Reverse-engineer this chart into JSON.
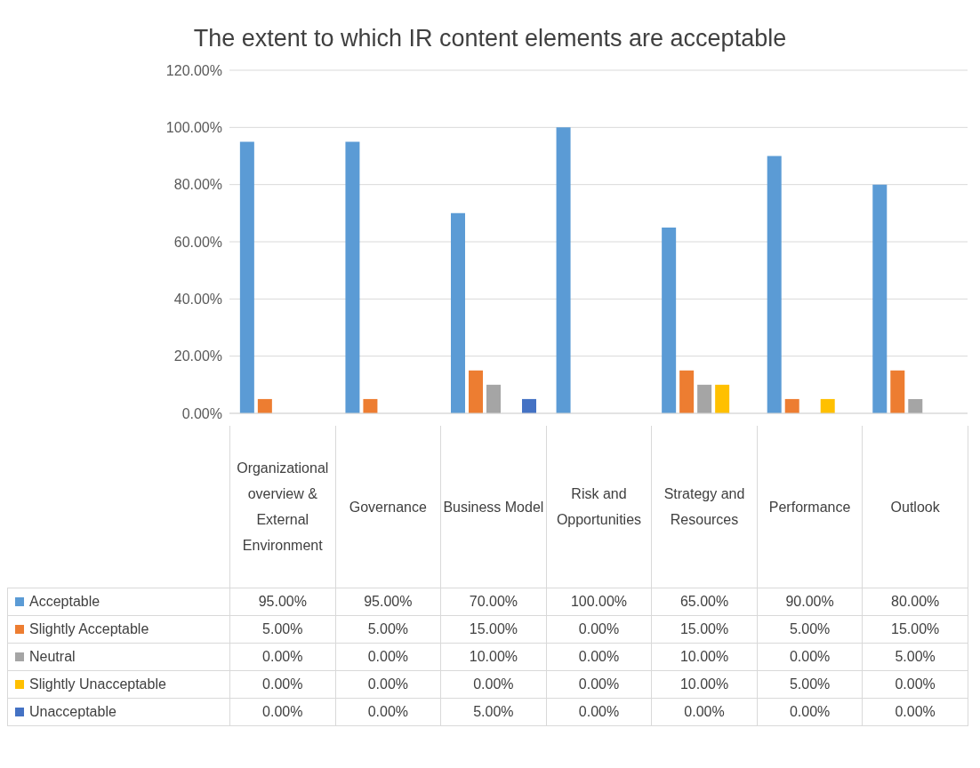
{
  "chart_data": {
    "type": "bar",
    "title": "The extent to which IR content elements are acceptable",
    "categories": [
      "Organizational overview & External Environment",
      "Governance",
      "Business Model",
      "Risk and Opportunities",
      "Strategy and Resources",
      "Performance",
      "Outlook"
    ],
    "series": [
      {
        "name": "Acceptable",
        "color": "#5b9bd5",
        "values": [
          95,
          95,
          70,
          100,
          65,
          90,
          80
        ],
        "value_labels": [
          "95.00%",
          "95.00%",
          "70.00%",
          "100.00%",
          "65.00%",
          "90.00%",
          "80.00%"
        ]
      },
      {
        "name": "Slightly Acceptable",
        "color": "#ed7d31",
        "values": [
          5,
          5,
          15,
          0,
          15,
          5,
          15
        ],
        "value_labels": [
          "5.00%",
          "5.00%",
          "15.00%",
          "0.00%",
          "15.00%",
          "5.00%",
          "15.00%"
        ]
      },
      {
        "name": "Neutral",
        "color": "#a5a5a5",
        "values": [
          0,
          0,
          10,
          0,
          10,
          0,
          5
        ],
        "value_labels": [
          "0.00%",
          "0.00%",
          "10.00%",
          "0.00%",
          "10.00%",
          "0.00%",
          "5.00%"
        ]
      },
      {
        "name": "Slightly Unacceptable",
        "color": "#ffc000",
        "values": [
          0,
          0,
          0,
          0,
          10,
          5,
          0
        ],
        "value_labels": [
          "0.00%",
          "0.00%",
          "0.00%",
          "0.00%",
          "10.00%",
          "5.00%",
          "0.00%"
        ]
      },
      {
        "name": "Unacceptable",
        "color": "#4472c4",
        "values": [
          0,
          0,
          5,
          0,
          0,
          0,
          0
        ],
        "value_labels": [
          "0.00%",
          "0.00%",
          "5.00%",
          "0.00%",
          "0.00%",
          "0.00%",
          "0.00%"
        ]
      }
    ],
    "ylim": [
      0,
      120
    ],
    "yticks": [
      {
        "value": 0,
        "label": "0.00%"
      },
      {
        "value": 20,
        "label": "20.00%"
      },
      {
        "value": 40,
        "label": "40.00%"
      },
      {
        "value": 60,
        "label": "60.00%"
      },
      {
        "value": 80,
        "label": "80.00%"
      },
      {
        "value": 100,
        "label": "100.00%"
      },
      {
        "value": 120,
        "label": "120.00%"
      }
    ],
    "grid": "y",
    "legend": "bottom"
  }
}
